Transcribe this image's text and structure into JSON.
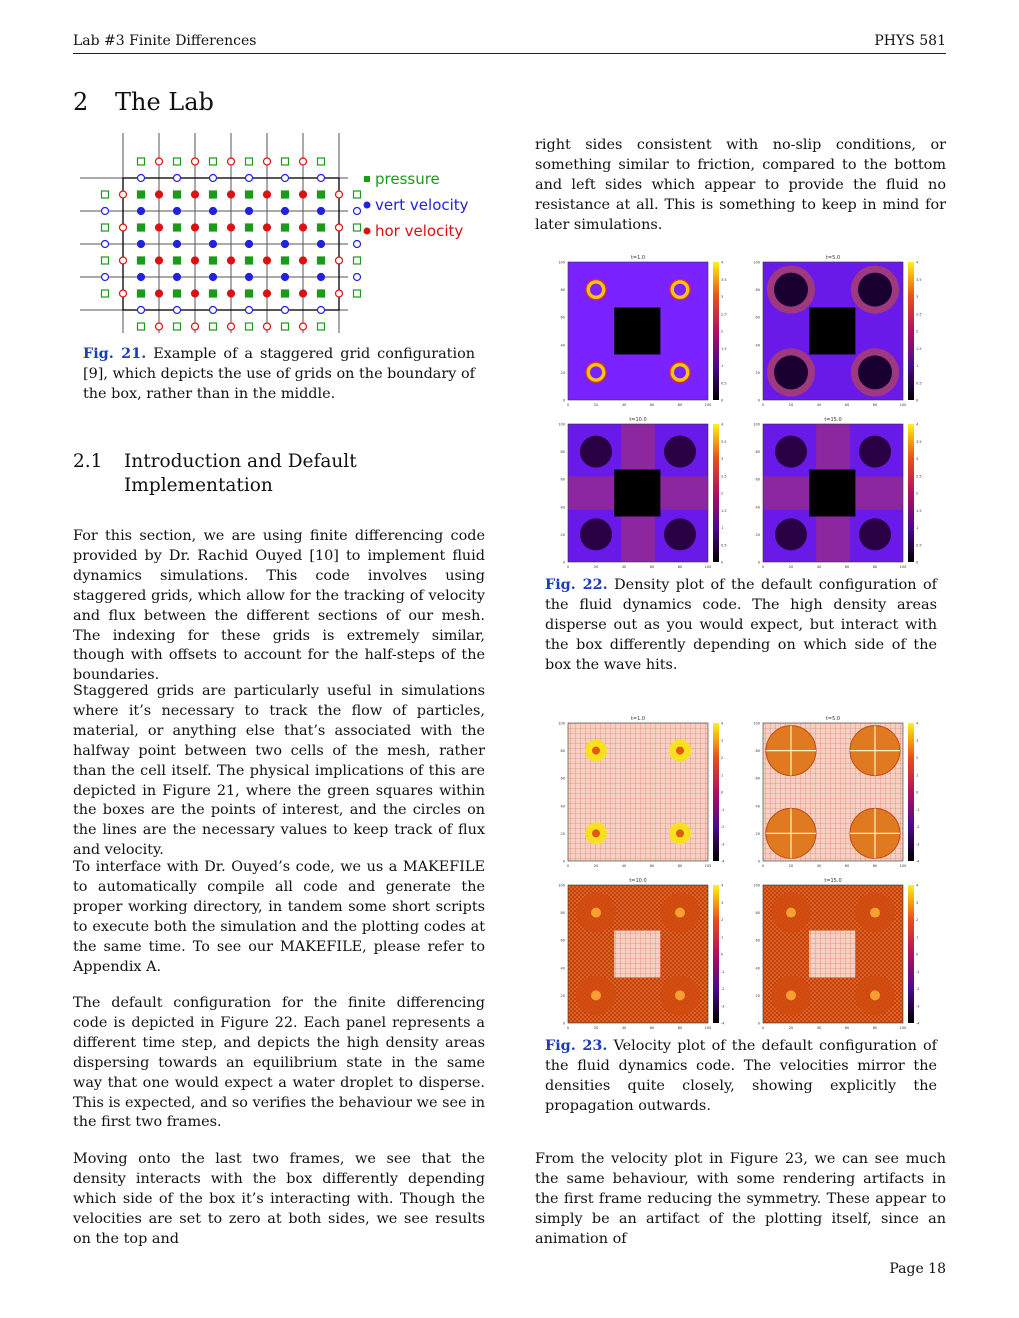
{
  "header": {
    "left": "Lab #3 Finite Differences",
    "right": "PHYS 581"
  },
  "section": {
    "number": "2",
    "title": "The Lab"
  },
  "fig21": {
    "legend": {
      "pressure": "pressure",
      "vert_velocity": "vert velocity",
      "hor_velocity": "hor velocity"
    },
    "colors": {
      "pressure": "#1c9a1c",
      "vert_velocity": "#2222dd",
      "hor_velocity": "#dd1111"
    },
    "caption_label": "Fig. 21.",
    "caption_text": "Example of a staggered grid configuration [9], which depicts the use of grids on the boundary of the box, rather than in the middle."
  },
  "subsection": {
    "number": "2.1",
    "title": "Introduction and Default Implementation"
  },
  "left_paragraphs": [
    "For this section, we are using finite differencing code provided by Dr. Rachid Ouyed [10] to implement fluid dynamics simulations. This code involves using staggered grids, which allow for the tracking of velocity and flux between the different sections of our mesh. The indexing for these grids is extremely similar, though with offsets to account for the half-steps of the boundaries.",
    "Staggered grids are particularly useful in simulations where it’s necessary to track the flow of particles, material, or anything else that’s associated with the halfway point between two cells of the mesh, rather than the cell itself. The physical implications of this are depicted in Figure 21, where the green squares within the boxes are the points of interest, and the circles on the lines are the necessary values to keep track of flux and velocity.",
    "To interface with Dr. Ouyed’s code, we us a MAKEFILE to automatically compile all code and generate the proper working directory, in tandem some short scripts to execute both the simulation and the plotting codes at the same time. To see our MAKEFILE, please refer to Appendix A.",
    "The default configuration for the finite differencing code is depicted in Figure 22. Each panel represents a different time step, and depicts the high density areas dispersing towards an equilibrium state in the same way that one would expect a water droplet to disperse. This is expected, and so verifies the behaviour we see in the first two frames.",
    "Moving onto the last two frames, we see that the density interacts with the box differently depending which side of the box it’s interacting with. Though the velocities are set to zero at both sides, we see results on the top and"
  ],
  "right_paragraphs": [
    "right sides consistent with no-slip conditions, or something similar to friction, compared to the bottom and left sides which appear to provide the fluid no resistance at all. This is something to keep in mind for later simulations.",
    "From the velocity plot in Figure 23, we can see much the same behaviour, with some rendering artifacts in the first frame reducing the symmetry. These appear to simply be an artifact of the plotting itself, since an animation of"
  ],
  "fig22": {
    "caption_label": "Fig. 22.",
    "caption_text": "Density plot of the default configuration of the fluid dynamics code. The high density areas disperse out as you would expect, but interact with the box differently depending on which side of the box the wave hits.",
    "panel_titles": [
      "t=1.0",
      "t=5.0",
      "t=10.0",
      "t=15.0"
    ]
  },
  "fig23": {
    "caption_label": "Fig. 23.",
    "caption_text": "Velocity plot of the default configuration of the fluid dynamics code. The velocities mirror the densities quite closely, showing explicitly the propagation outwards.",
    "panel_titles": [
      "t=1.0",
      "t=5.0",
      "t=10.0",
      "t=15.0"
    ]
  },
  "footer": {
    "page": "Page 18"
  }
}
